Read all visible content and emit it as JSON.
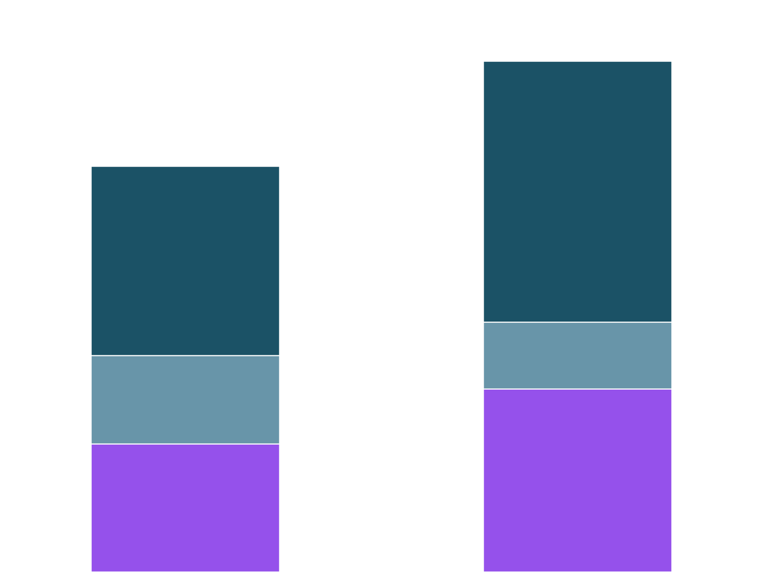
{
  "chart_data": {
    "type": "bar",
    "stacked": true,
    "title": "",
    "xlabel": "",
    "ylabel": "",
    "categories": [
      "",
      ""
    ],
    "series": [
      {
        "values": [
          18.4,
          26.3
        ],
        "color": "#9551EB"
      },
      {
        "values": [
          12.7,
          9.6
        ],
        "color": "#6895A9"
      },
      {
        "values": [
          27.2,
          37.5
        ],
        "color": "#1B5266"
      }
    ],
    "ylim": [
      0,
      82.2
    ],
    "grid": false,
    "legend": "none",
    "segment_separator_color": "#ffffff"
  }
}
